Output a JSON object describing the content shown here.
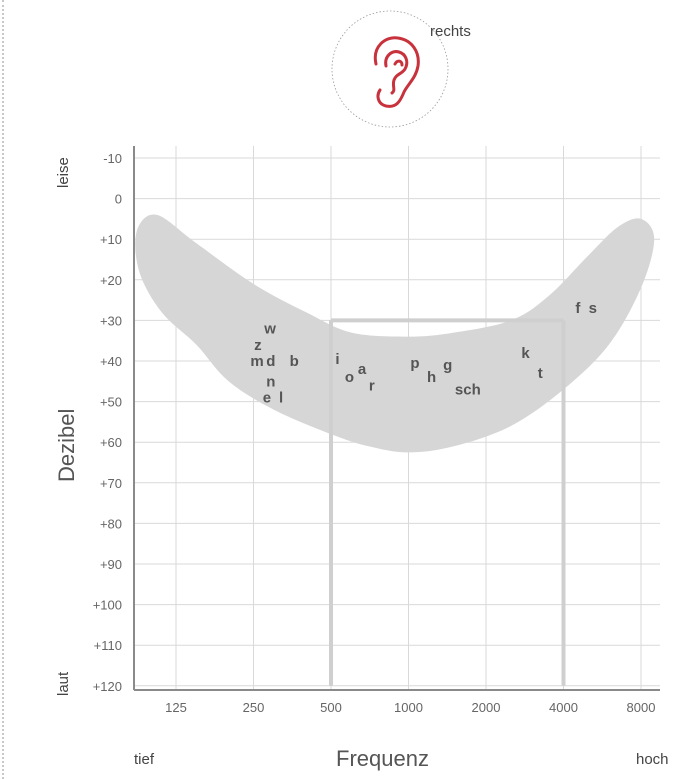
{
  "ear": {
    "label": "rechts",
    "icon": "ear-icon",
    "color": "#c8323c"
  },
  "y_axis": {
    "title": "Dezibel",
    "top_word": "leise",
    "bottom_word": "laut",
    "ticks": [
      "-10",
      "0",
      "+10",
      "+20",
      "+30",
      "+40",
      "+50",
      "+60",
      "+70",
      "+80",
      "+90",
      "+100",
      "+110",
      "+120"
    ]
  },
  "x_axis": {
    "title": "Frequenz",
    "left_word": "tief",
    "right_word": "hoch",
    "ticks": [
      "125",
      "250",
      "500",
      "1000",
      "2000",
      "4000",
      "8000"
    ]
  },
  "chart_data": {
    "type": "scatter",
    "title": "",
    "xlabel": "Frequenz",
    "ylabel": "Dezibel",
    "x_scale": "log2",
    "x_ticks": [
      125,
      250,
      500,
      1000,
      2000,
      4000,
      8000
    ],
    "ylim": [
      -10,
      120
    ],
    "y_inverted": true,
    "grid": true,
    "speech_banana_color": "#d6d6d6",
    "reference_line_color": "#cfcfcf",
    "speech_banana": [
      [
        88,
        8
      ],
      [
        105,
        4
      ],
      [
        150,
        11
      ],
      [
        250,
        21
      ],
      [
        400,
        28
      ],
      [
        600,
        33
      ],
      [
        1000,
        34
      ],
      [
        1500,
        33
      ],
      [
        2500,
        30
      ],
      [
        3500,
        24
      ],
      [
        5000,
        14
      ],
      [
        6500,
        7
      ],
      [
        8000,
        5
      ],
      [
        9000,
        10
      ],
      [
        8000,
        22
      ],
      [
        6000,
        36
      ],
      [
        4000,
        47
      ],
      [
        2500,
        56
      ],
      [
        1500,
        61
      ],
      [
        1000,
        62.5
      ],
      [
        700,
        61
      ],
      [
        500,
        58
      ],
      [
        300,
        52
      ],
      [
        200,
        45
      ],
      [
        150,
        36
      ],
      [
        110,
        28
      ],
      [
        90,
        18
      ]
    ],
    "reference_lines": [
      {
        "x1": 500,
        "y1": 30,
        "x2": 4000,
        "y2": 30
      },
      {
        "x1": 500,
        "y1": 30,
        "x2": 500,
        "y2": 120
      },
      {
        "x1": 4000,
        "y1": 30,
        "x2": 4000,
        "y2": 120
      }
    ],
    "points": [
      {
        "label": "w",
        "x": 290,
        "y": 32
      },
      {
        "label": "z",
        "x": 260,
        "y": 36
      },
      {
        "label": "m",
        "x": 258,
        "y": 40
      },
      {
        "label": "d",
        "x": 292,
        "y": 40
      },
      {
        "label": "b",
        "x": 360,
        "y": 40
      },
      {
        "label": "n",
        "x": 292,
        "y": 45
      },
      {
        "label": "e",
        "x": 282,
        "y": 49
      },
      {
        "label": "l",
        "x": 320,
        "y": 49
      },
      {
        "label": "i",
        "x": 530,
        "y": 39.5
      },
      {
        "label": "o",
        "x": 590,
        "y": 44
      },
      {
        "label": "a",
        "x": 660,
        "y": 42
      },
      {
        "label": "r",
        "x": 720,
        "y": 46
      },
      {
        "label": "p",
        "x": 1060,
        "y": 40.5
      },
      {
        "label": "h",
        "x": 1230,
        "y": 44
      },
      {
        "label": "g",
        "x": 1420,
        "y": 41
      },
      {
        "label": "sch",
        "x": 1700,
        "y": 47
      },
      {
        "label": "k",
        "x": 2850,
        "y": 38
      },
      {
        "label": "t",
        "x": 3250,
        "y": 43
      },
      {
        "label": "f",
        "x": 4550,
        "y": 27
      },
      {
        "label": "s",
        "x": 5200,
        "y": 27
      }
    ]
  }
}
